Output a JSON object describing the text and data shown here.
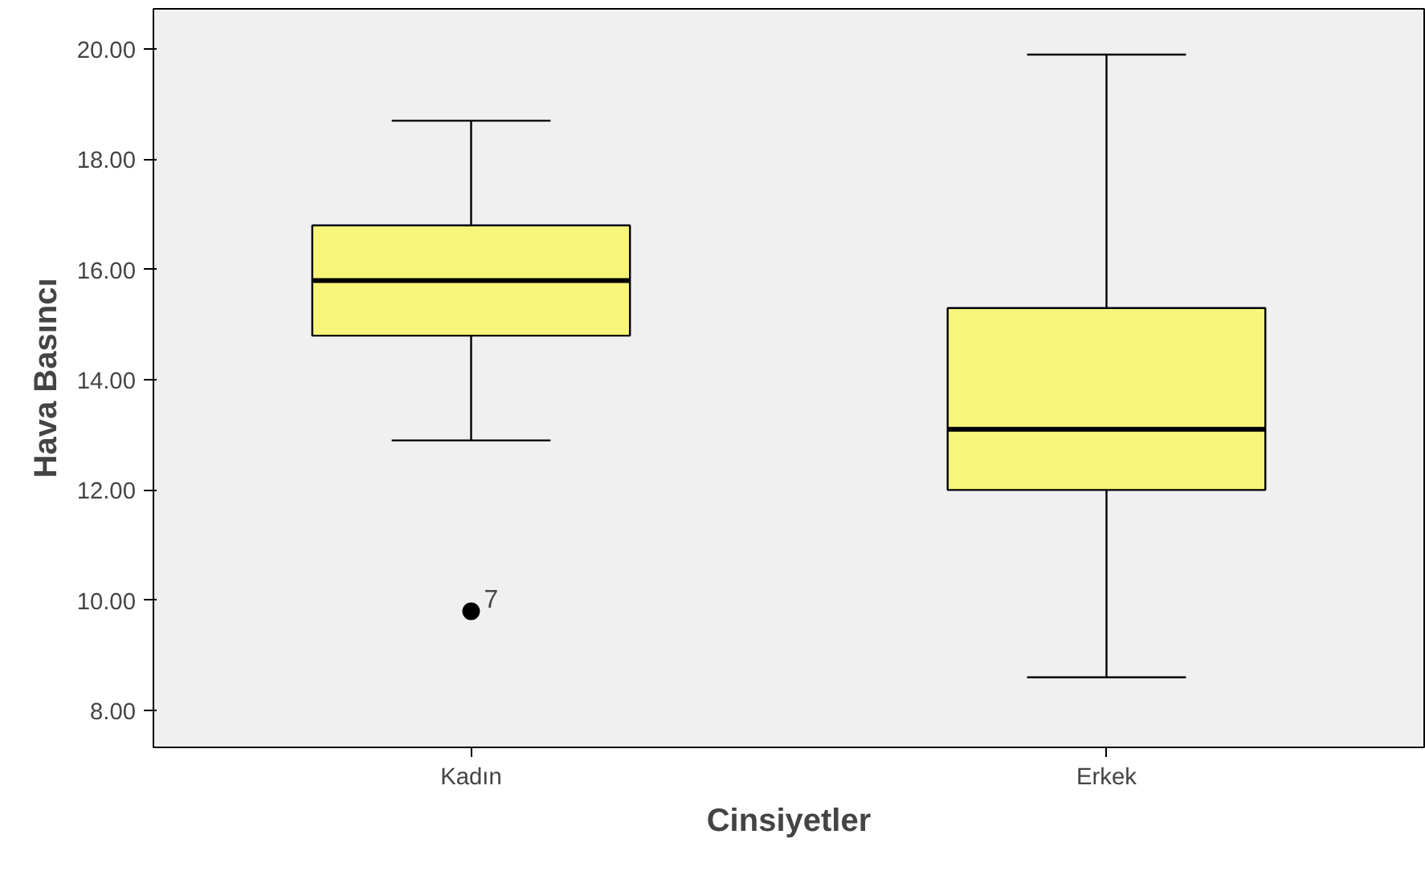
{
  "chart_data": {
    "type": "box",
    "xlabel": "Cinsiyetler",
    "ylabel": "Hava Basıncı",
    "categories": [
      "Kadın",
      "Erkek"
    ],
    "boxes": [
      {
        "low": 12.9,
        "q1": 14.8,
        "median": 15.8,
        "q3": 16.8,
        "high": 18.7,
        "outliers": [
          9.8
        ]
      },
      {
        "low": 8.6,
        "q1": 12.0,
        "median": 13.1,
        "q3": 15.3,
        "high": 19.9
      }
    ],
    "color": "#f7f67a",
    "ylim": [
      7.33,
      20.73
    ],
    "yticks": [
      {
        "value": 8,
        "label": "8.00"
      },
      {
        "value": 10,
        "label": "10.00"
      },
      {
        "value": 12,
        "label": "12.00"
      },
      {
        "value": 14,
        "label": "14.00"
      },
      {
        "value": 16,
        "label": "16.00"
      },
      {
        "value": 18,
        "label": "18.00"
      },
      {
        "value": 20,
        "label": "20.00"
      }
    ],
    "annotations": [
      "7"
    ],
    "grid": false
  }
}
